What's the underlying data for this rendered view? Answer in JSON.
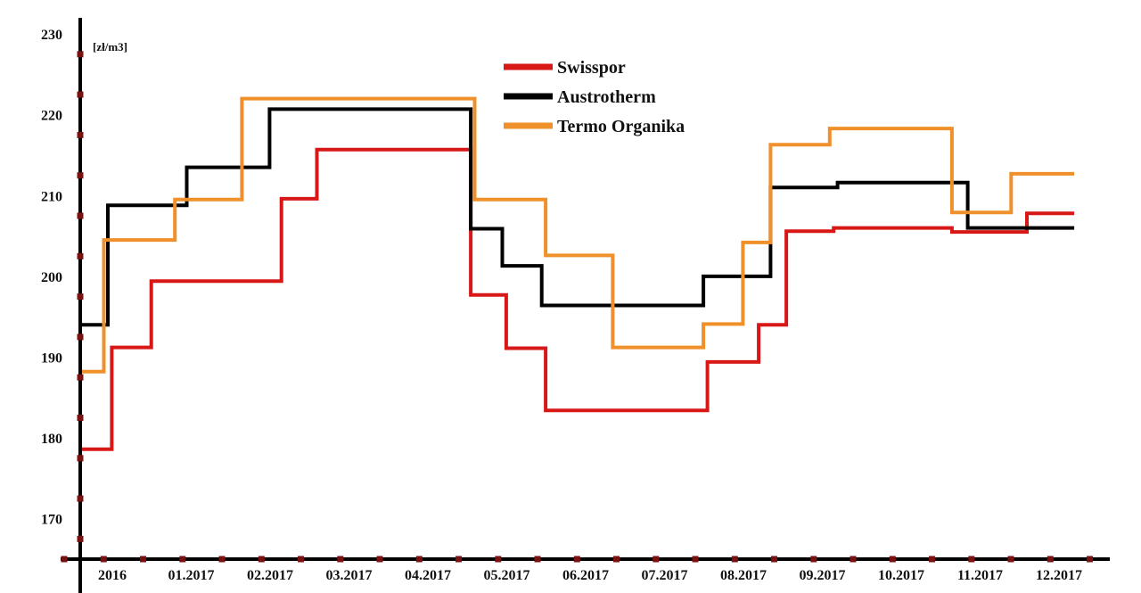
{
  "chart_data": {
    "type": "line",
    "step": true,
    "unit_label": "[zł/m3]",
    "xlabel": "",
    "ylabel": "",
    "categories": [
      "2016",
      "01.2017",
      "02.2017",
      "03.2017",
      "04.2017",
      "05.2017",
      "06.2017",
      "07.2017",
      "08.2017",
      "09.2017",
      "10.2017",
      "11.2017",
      "12.2017"
    ],
    "y_ticks": [
      170,
      180,
      190,
      200,
      210,
      220,
      230
    ],
    "ylim": [
      165,
      232
    ],
    "xlim": [
      0,
      13.1
    ],
    "grid": false,
    "legend_position": "top-center",
    "series": [
      {
        "name": "Swisspor",
        "color": "#d81717",
        "points": [
          [
            0,
            178.6
          ],
          [
            0.4,
            178.6
          ],
          [
            0.4,
            191.2
          ],
          [
            0.9,
            191.2
          ],
          [
            0.9,
            199.4
          ],
          [
            2.55,
            199.4
          ],
          [
            2.55,
            209.6
          ],
          [
            3.0,
            209.6
          ],
          [
            3.0,
            215.7
          ],
          [
            4.95,
            215.7
          ],
          [
            4.95,
            197.7
          ],
          [
            5.4,
            197.7
          ],
          [
            5.4,
            191.1
          ],
          [
            5.9,
            191.1
          ],
          [
            5.9,
            183.4
          ],
          [
            7.95,
            183.4
          ],
          [
            7.95,
            189.4
          ],
          [
            8.6,
            189.4
          ],
          [
            8.6,
            194.0
          ],
          [
            8.95,
            194.0
          ],
          [
            8.95,
            205.6
          ],
          [
            9.55,
            205.6
          ],
          [
            9.55,
            206.0
          ],
          [
            11.05,
            206.0
          ],
          [
            11.05,
            205.5
          ],
          [
            12.0,
            205.5
          ],
          [
            12.0,
            207.8
          ],
          [
            12.6,
            207.8
          ]
        ]
      },
      {
        "name": "Austrotherm",
        "color": "#000000",
        "points": [
          [
            0,
            194.0
          ],
          [
            0.35,
            194.0
          ],
          [
            0.35,
            208.8
          ],
          [
            1.35,
            208.8
          ],
          [
            1.35,
            213.5
          ],
          [
            2.4,
            213.5
          ],
          [
            2.4,
            220.7
          ],
          [
            4.95,
            220.7
          ],
          [
            4.95,
            205.9
          ],
          [
            5.35,
            205.9
          ],
          [
            5.35,
            201.3
          ],
          [
            5.85,
            201.3
          ],
          [
            5.85,
            196.4
          ],
          [
            7.9,
            196.4
          ],
          [
            7.9,
            200.0
          ],
          [
            8.75,
            200.0
          ],
          [
            8.75,
            211.0
          ],
          [
            9.6,
            211.0
          ],
          [
            9.6,
            211.6
          ],
          [
            11.25,
            211.6
          ],
          [
            11.25,
            206.0
          ],
          [
            12.6,
            206.0
          ]
        ]
      },
      {
        "name": "Termo Organika",
        "color": "#f0902a",
        "points": [
          [
            0,
            188.2
          ],
          [
            0.3,
            188.2
          ],
          [
            0.3,
            204.5
          ],
          [
            1.2,
            204.5
          ],
          [
            1.2,
            209.5
          ],
          [
            2.05,
            209.5
          ],
          [
            2.05,
            222.0
          ],
          [
            5.0,
            222.0
          ],
          [
            5.0,
            209.5
          ],
          [
            5.9,
            209.5
          ],
          [
            5.9,
            202.6
          ],
          [
            6.75,
            202.6
          ],
          [
            6.75,
            191.2
          ],
          [
            7.9,
            191.2
          ],
          [
            7.9,
            194.1
          ],
          [
            8.4,
            194.1
          ],
          [
            8.4,
            204.2
          ],
          [
            8.75,
            204.2
          ],
          [
            8.75,
            216.3
          ],
          [
            9.5,
            216.3
          ],
          [
            9.5,
            218.3
          ],
          [
            11.05,
            218.3
          ],
          [
            11.05,
            207.9
          ],
          [
            11.8,
            207.9
          ],
          [
            11.8,
            212.7
          ],
          [
            12.6,
            212.7
          ]
        ]
      }
    ]
  }
}
